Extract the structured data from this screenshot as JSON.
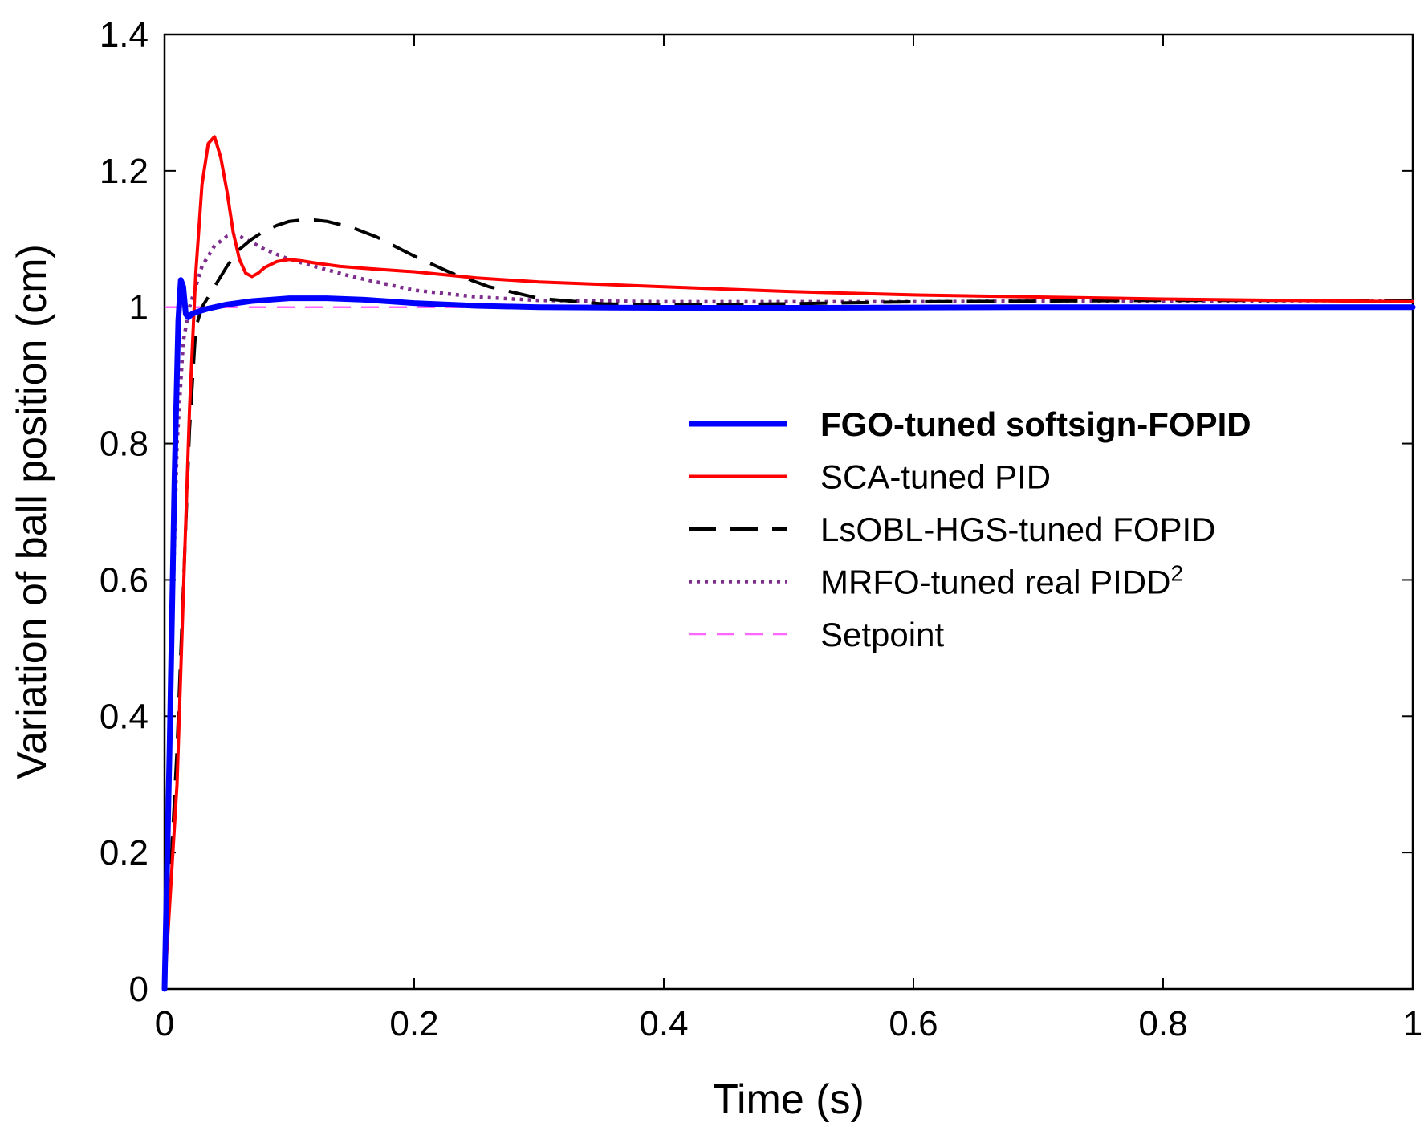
{
  "chart_data": {
    "type": "line",
    "title": "",
    "xlabel": "Time (s)",
    "ylabel": "Variation of ball position (cm)",
    "xlim": [
      0,
      1
    ],
    "ylim": [
      0,
      1.4
    ],
    "xticks": [
      0,
      0.2,
      0.4,
      0.6,
      0.8,
      1
    ],
    "yticks": [
      0,
      0.2,
      0.4,
      0.6,
      0.8,
      1,
      1.2,
      1.4
    ],
    "xtick_labels": [
      "0",
      "0.2",
      "0.4",
      "0.6",
      "0.8",
      "1"
    ],
    "ytick_labels": [
      "0",
      "0.2",
      "0.4",
      "0.6",
      "0.8",
      "1",
      "1.2",
      "1.4"
    ],
    "grid": false,
    "legend_position": "center-right",
    "series": [
      {
        "name": "FGO-tuned softsign-FOPID",
        "legend_main": "FGO-tuned softsign-FOPID",
        "legend_sup": "",
        "color": "#0000ff",
        "style": "solid",
        "bold_label": true,
        "x": [
          0,
          0.004,
          0.008,
          0.011,
          0.013,
          0.015,
          0.017,
          0.019,
          0.022,
          0.026,
          0.035,
          0.05,
          0.07,
          0.1,
          0.13,
          0.16,
          0.2,
          0.25,
          0.3,
          0.4,
          0.5,
          0.7,
          1.0
        ],
        "y": [
          0,
          0.35,
          0.75,
          0.98,
          1.04,
          1.03,
          0.99,
          0.985,
          0.99,
          0.993,
          0.998,
          1.004,
          1.009,
          1.013,
          1.013,
          1.011,
          1.006,
          1.002,
          1.0,
          0.999,
          0.999,
          1.0,
          1.0
        ]
      },
      {
        "name": "SCA-tuned PID",
        "legend_main": "SCA-tuned PID",
        "legend_sup": "",
        "color": "#ff0000",
        "style": "solid",
        "bold_label": false,
        "x": [
          0,
          0.01,
          0.02,
          0.025,
          0.03,
          0.035,
          0.04,
          0.045,
          0.05,
          0.055,
          0.06,
          0.065,
          0.07,
          0.075,
          0.08,
          0.09,
          0.1,
          0.11,
          0.12,
          0.14,
          0.16,
          0.2,
          0.25,
          0.3,
          0.4,
          0.5,
          0.6,
          0.7,
          0.8,
          0.9,
          1.0
        ],
        "y": [
          0,
          0.3,
          0.85,
          1.05,
          1.18,
          1.24,
          1.25,
          1.22,
          1.17,
          1.11,
          1.07,
          1.05,
          1.045,
          1.05,
          1.058,
          1.067,
          1.07,
          1.068,
          1.065,
          1.06,
          1.057,
          1.052,
          1.043,
          1.037,
          1.03,
          1.023,
          1.018,
          1.015,
          1.012,
          1.01,
          1.008
        ]
      },
      {
        "name": "LsOBL-HGS-tuned FOPID",
        "legend_main": "LsOBL-HGS-tuned FOPID",
        "legend_sup": "",
        "color": "#000000",
        "style": "dashed",
        "bold_label": false,
        "x": [
          0,
          0.01,
          0.02,
          0.025,
          0.03,
          0.04,
          0.05,
          0.06,
          0.07,
          0.08,
          0.09,
          0.1,
          0.11,
          0.12,
          0.13,
          0.15,
          0.17,
          0.2,
          0.23,
          0.26,
          0.3,
          0.35,
          0.4,
          0.5,
          0.6,
          0.7,
          0.8,
          1.0
        ],
        "y": [
          0,
          0.35,
          0.82,
          0.97,
          1.0,
          1.03,
          1.06,
          1.085,
          1.1,
          1.112,
          1.12,
          1.126,
          1.128,
          1.128,
          1.126,
          1.117,
          1.103,
          1.075,
          1.05,
          1.03,
          1.013,
          1.005,
          1.003,
          1.005,
          1.008,
          1.009,
          1.01,
          1.01
        ]
      },
      {
        "name": "MRFO-tuned real PIDD2",
        "legend_main": "MRFO-tuned real PIDD",
        "legend_sup": "2",
        "color": "#7e2f8e",
        "style": "dotted",
        "bold_label": false,
        "x": [
          0,
          0.005,
          0.01,
          0.015,
          0.02,
          0.03,
          0.04,
          0.05,
          0.055,
          0.06,
          0.07,
          0.08,
          0.1,
          0.12,
          0.15,
          0.2,
          0.25,
          0.3,
          0.4,
          0.5,
          0.6,
          0.7,
          0.8,
          1.0
        ],
        "y": [
          0,
          0.45,
          0.8,
          0.95,
          1.0,
          1.06,
          1.09,
          1.104,
          1.106,
          1.104,
          1.095,
          1.085,
          1.07,
          1.06,
          1.045,
          1.025,
          1.015,
          1.01,
          1.008,
          1.008,
          1.008,
          1.009,
          1.009,
          1.01
        ]
      },
      {
        "name": "Setpoint",
        "legend_main": "Setpoint",
        "legend_sup": "",
        "color": "#ff66ff",
        "style": "dashed-thin",
        "bold_label": false,
        "x": [
          0,
          1
        ],
        "y": [
          1,
          1
        ]
      }
    ]
  }
}
